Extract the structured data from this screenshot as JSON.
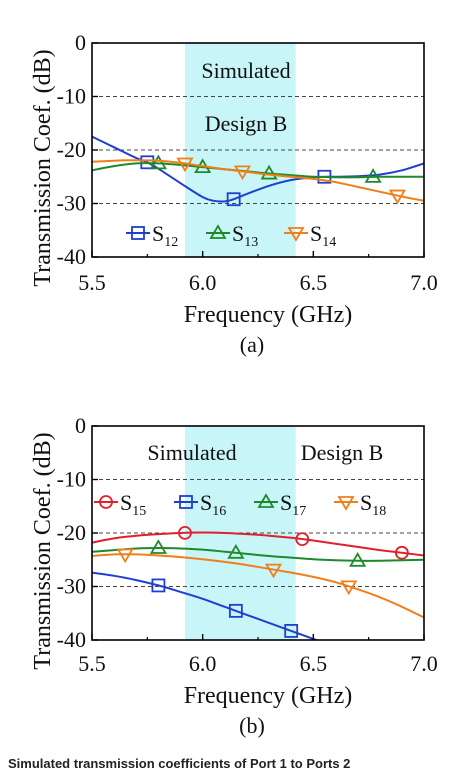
{
  "caption": "Simulated transmission coefficients of Port 1 to Ports 2",
  "chart_data": [
    {
      "type": "line",
      "panel_label": "(a)",
      "xlabel": "Frequency (GHz)",
      "ylabel": "Transmission Coef. (dB)",
      "xlim": [
        5.5,
        7.0
      ],
      "ylim": [
        -40,
        0
      ],
      "xticks": [
        "5.5",
        "6.0",
        "6.5",
        "7.0"
      ],
      "yticks": [
        "0",
        "-10",
        "-20",
        "-30",
        "-40"
      ],
      "grid_y": [
        -10,
        -20,
        -30
      ],
      "band": [
        5.92,
        6.42
      ],
      "band_color": "#c8f5f8",
      "annotations": [
        "Simulated",
        "Design B"
      ],
      "legend_position": "bottom-center",
      "series": [
        {
          "name": "S12",
          "name_main": "S",
          "name_sub": "12",
          "color": "#1f3fd0",
          "marker": "square",
          "x": [
            5.5,
            5.6,
            5.7,
            5.75,
            5.8,
            5.9,
            6.0,
            6.05,
            6.1,
            6.14,
            6.2,
            6.3,
            6.4,
            6.5,
            6.55,
            6.6,
            6.7,
            6.8,
            6.9,
            7.0
          ],
          "y": [
            -17.5,
            -19.5,
            -21.5,
            -22.3,
            -23.5,
            -26.2,
            -28.8,
            -29.5,
            -29.6,
            -29.2,
            -28.2,
            -26.7,
            -25.6,
            -25.1,
            -25.0,
            -25.0,
            -24.9,
            -24.6,
            -23.8,
            -22.5
          ],
          "markers_x": [
            5.75,
            6.14,
            6.55
          ]
        },
        {
          "name": "S13",
          "name_main": "S",
          "name_sub": "13",
          "color": "#1e8a2a",
          "marker": "triangle",
          "x": [
            5.5,
            5.6,
            5.7,
            5.8,
            5.9,
            6.0,
            6.1,
            6.2,
            6.3,
            6.4,
            6.5,
            6.6,
            6.7,
            6.8,
            6.9,
            7.0
          ],
          "y": [
            -23.8,
            -23.0,
            -22.5,
            -22.5,
            -22.8,
            -23.2,
            -23.6,
            -24.0,
            -24.4,
            -24.7,
            -25.0,
            -25.1,
            -25.1,
            -25.0,
            -25.0,
            -25.0
          ],
          "markers_x": [
            5.8,
            6.0,
            6.3,
            6.77
          ]
        },
        {
          "name": "S14",
          "name_main": "S",
          "name_sub": "14",
          "color": "#f07f1a",
          "marker": "triangle-down",
          "x": [
            5.5,
            5.6,
            5.7,
            5.8,
            5.9,
            6.0,
            6.1,
            6.2,
            6.3,
            6.4,
            6.5,
            6.6,
            6.7,
            6.8,
            6.9,
            7.0
          ],
          "y": [
            -22.2,
            -22.0,
            -21.9,
            -22.0,
            -22.4,
            -23.0,
            -23.6,
            -24.1,
            -24.6,
            -25.0,
            -25.4,
            -26.0,
            -26.9,
            -27.8,
            -28.7,
            -29.5
          ],
          "markers_x": [
            5.92,
            6.18,
            6.88
          ]
        }
      ]
    },
    {
      "type": "line",
      "panel_label": "(b)",
      "xlabel": "Frequency (GHz)",
      "ylabel": "Transmission Coef. (dB)",
      "xlim": [
        5.5,
        7.0
      ],
      "ylim": [
        -40,
        0
      ],
      "xticks": [
        "5.5",
        "6.0",
        "6.5",
        "7.0"
      ],
      "yticks": [
        "0",
        "-10",
        "-20",
        "-30",
        "-40"
      ],
      "grid_y": [
        -10,
        -20,
        -30
      ],
      "band": [
        5.92,
        6.42
      ],
      "band_color": "#c8f5f8",
      "annotations": [
        "Simulated",
        "Design B"
      ],
      "legend_position": "top",
      "series": [
        {
          "name": "S15",
          "name_main": "S",
          "name_sub": "15",
          "color": "#e0202a",
          "marker": "circle",
          "x": [
            5.5,
            5.6,
            5.7,
            5.8,
            5.9,
            6.0,
            6.1,
            6.2,
            6.3,
            6.4,
            6.5,
            6.6,
            6.7,
            6.8,
            6.9,
            7.0
          ],
          "y": [
            -21.8,
            -21.0,
            -20.5,
            -20.2,
            -20.0,
            -19.9,
            -20.0,
            -20.2,
            -20.5,
            -20.9,
            -21.4,
            -22.0,
            -22.6,
            -23.2,
            -23.7,
            -24.2
          ],
          "markers_x": [
            5.92,
            6.45,
            6.9
          ]
        },
        {
          "name": "S16",
          "name_main": "S",
          "name_sub": "16",
          "color": "#1f3fd0",
          "marker": "square",
          "x": [
            5.5,
            5.6,
            5.7,
            5.8,
            5.9,
            6.0,
            6.1,
            6.2,
            6.3,
            6.4,
            6.5,
            6.6
          ],
          "y": [
            -27.4,
            -28.0,
            -28.8,
            -29.8,
            -31.0,
            -32.3,
            -33.8,
            -35.3,
            -36.8,
            -38.3,
            -39.8,
            -41.3
          ],
          "markers_x": [
            5.8,
            6.15,
            6.4
          ]
        },
        {
          "name": "S17",
          "name_main": "S",
          "name_sub": "17",
          "color": "#1e8a2a",
          "marker": "triangle",
          "x": [
            5.5,
            5.6,
            5.7,
            5.8,
            5.9,
            6.0,
            6.1,
            6.2,
            6.3,
            6.4,
            6.5,
            6.6,
            6.7,
            6.8,
            6.9,
            7.0
          ],
          "y": [
            -23.5,
            -23.2,
            -22.9,
            -22.8,
            -22.9,
            -23.1,
            -23.5,
            -23.9,
            -24.3,
            -24.6,
            -24.9,
            -25.1,
            -25.2,
            -25.2,
            -25.1,
            -25.0
          ],
          "markers_x": [
            5.8,
            6.15,
            6.7
          ]
        },
        {
          "name": "S18",
          "name_main": "S",
          "name_sub": "18",
          "color": "#f07f1a",
          "marker": "triangle-down",
          "x": [
            5.5,
            5.6,
            5.7,
            5.8,
            5.9,
            6.0,
            6.1,
            6.2,
            6.3,
            6.4,
            6.5,
            6.6,
            6.7,
            6.8,
            6.9,
            7.0
          ],
          "y": [
            -24.3,
            -24.0,
            -24.0,
            -24.2,
            -24.5,
            -24.9,
            -25.4,
            -26.0,
            -26.7,
            -27.4,
            -28.2,
            -29.2,
            -30.5,
            -32.0,
            -33.8,
            -35.8
          ],
          "markers_x": [
            5.65,
            6.32,
            6.66
          ]
        }
      ]
    }
  ]
}
